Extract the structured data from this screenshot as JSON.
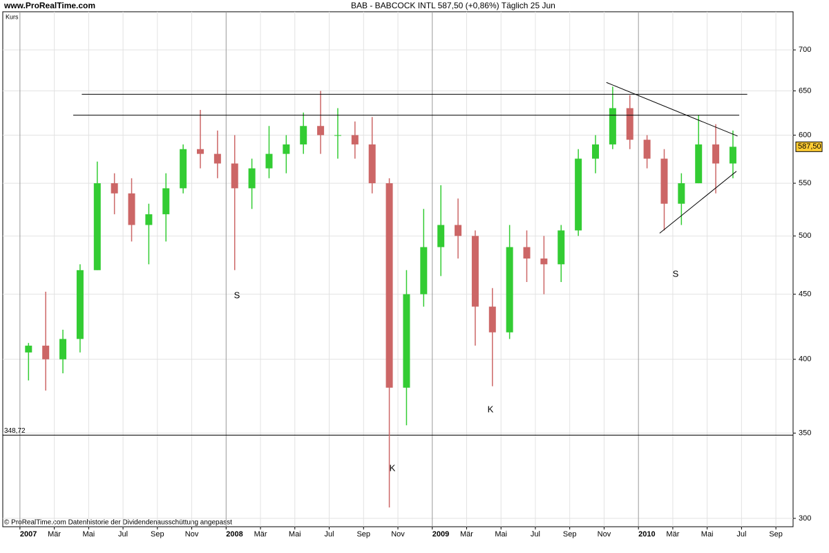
{
  "chart_data": {
    "type": "candlestick",
    "site": "www.ProRealTime.com",
    "title": "BAB - BABCOCK INTL    587,50 (+0,86%)    Täglich  25 Jun",
    "ylabel": "Kurs",
    "footer": "© ProRealTime.com Datenhistorie der Dividendenausschüttung angepasst",
    "log_y": true,
    "grid": true,
    "up_color": "#33cc33",
    "down_color": "#cc6666",
    "x": [
      "2007-01",
      "2007-02",
      "2007-03",
      "2007-04",
      "2007-05",
      "2007-06",
      "2007-07",
      "2007-08",
      "2007-09",
      "2007-10",
      "2007-11",
      "2007-12",
      "2008-01",
      "2008-02",
      "2008-03",
      "2008-04",
      "2008-05",
      "2008-06",
      "2008-07",
      "2008-08",
      "2008-09",
      "2008-10",
      "2008-11",
      "2008-12",
      "2009-01",
      "2009-02",
      "2009-03",
      "2009-04",
      "2009-05",
      "2009-06",
      "2009-07",
      "2009-08",
      "2009-09",
      "2009-10",
      "2009-11",
      "2009-12",
      "2010-01",
      "2010-02",
      "2010-03",
      "2010-04",
      "2010-05",
      "2010-06"
    ],
    "open": [
      405,
      410,
      400,
      415,
      470,
      550,
      540,
      510,
      520,
      545,
      585,
      580,
      570,
      545,
      565,
      580,
      590,
      610,
      600,
      600,
      590,
      550,
      380,
      450,
      490,
      510,
      500,
      440,
      420,
      490,
      480,
      475,
      505,
      575,
      590,
      630,
      595,
      575,
      530,
      550,
      590,
      570
    ],
    "high": [
      412,
      452,
      422,
      475,
      572,
      560,
      555,
      530,
      560,
      590,
      628,
      605,
      600,
      575,
      610,
      600,
      625,
      650,
      630,
      615,
      620,
      555,
      470,
      525,
      548,
      535,
      505,
      455,
      510,
      505,
      500,
      510,
      585,
      600,
      655,
      645,
      600,
      585,
      560,
      622,
      612,
      605
    ],
    "low": [
      385,
      378,
      390,
      405,
      470,
      520,
      495,
      475,
      495,
      540,
      565,
      555,
      470,
      525,
      555,
      560,
      580,
      580,
      575,
      575,
      540,
      306,
      355,
      440,
      465,
      480,
      410,
      381,
      415,
      460,
      450,
      460,
      500,
      560,
      585,
      585,
      565,
      505,
      510,
      550,
      540,
      555
    ],
    "close": [
      410,
      400,
      415,
      470,
      550,
      540,
      510,
      520,
      545,
      585,
      580,
      570,
      545,
      565,
      580,
      590,
      610,
      600,
      600,
      590,
      550,
      380,
      450,
      490,
      510,
      500,
      440,
      420,
      490,
      480,
      475,
      505,
      575,
      590,
      630,
      595,
      575,
      530,
      550,
      590,
      570,
      587.5
    ],
    "last_price": {
      "value": 587.5,
      "label": "587,50"
    },
    "level": {
      "value": 348.72,
      "label": "348,72"
    },
    "trend_lines": [
      {
        "x": [
          "2007-04-19",
          "2010-07-11"
        ],
        "y": [
          646,
          646
        ]
      },
      {
        "x": [
          "2007-04-04",
          "2010-06-27"
        ],
        "y": [
          622,
          622
        ]
      },
      {
        "x": [
          "2009-11-05",
          "2010-06-24"
        ],
        "y": [
          660,
          599
        ]
      },
      {
        "x": [
          "2010-02-08",
          "2010-06-22"
        ],
        "y": [
          502.5,
          562
        ]
      }
    ],
    "annotations": [
      "S",
      "S",
      "K",
      "K"
    ],
    "xlim": [
      "2006-12",
      "2010-10"
    ],
    "ylim": [
      295.5,
      750
    ],
    "yticks": [
      300,
      350,
      400,
      450,
      500,
      550,
      600,
      650,
      700
    ],
    "xticks": [
      {
        "value": "2007-01",
        "label": "2007"
      },
      {
        "value": "2007-03",
        "label": "Mär"
      },
      {
        "value": "2007-05",
        "label": "Mai"
      },
      {
        "value": "2007-07",
        "label": "Jul"
      },
      {
        "value": "2007-09",
        "label": "Sep"
      },
      {
        "value": "2007-11",
        "label": "Nov"
      },
      {
        "value": "2008-01",
        "label": "2008"
      },
      {
        "value": "2008-03",
        "label": "Mär"
      },
      {
        "value": "2008-05",
        "label": "Mai"
      },
      {
        "value": "2008-07",
        "label": "Jul"
      },
      {
        "value": "2008-09",
        "label": "Sep"
      },
      {
        "value": "2008-11",
        "label": "Nov"
      },
      {
        "value": "2009-01",
        "label": "2009"
      },
      {
        "value": "2009-03",
        "label": "Mär"
      },
      {
        "value": "2009-05",
        "label": "Mai"
      },
      {
        "value": "2009-07",
        "label": "Jul"
      },
      {
        "value": "2009-09",
        "label": "Sep"
      },
      {
        "value": "2009-11",
        "label": "Nov"
      },
      {
        "value": "2010-01",
        "label": "2010"
      },
      {
        "value": "2010-03",
        "label": "Mär"
      },
      {
        "value": "2010-05",
        "label": "Mai"
      },
      {
        "value": "2010-07",
        "label": "Jul"
      },
      {
        "value": "2010-09",
        "label": "Sep"
      }
    ]
  }
}
